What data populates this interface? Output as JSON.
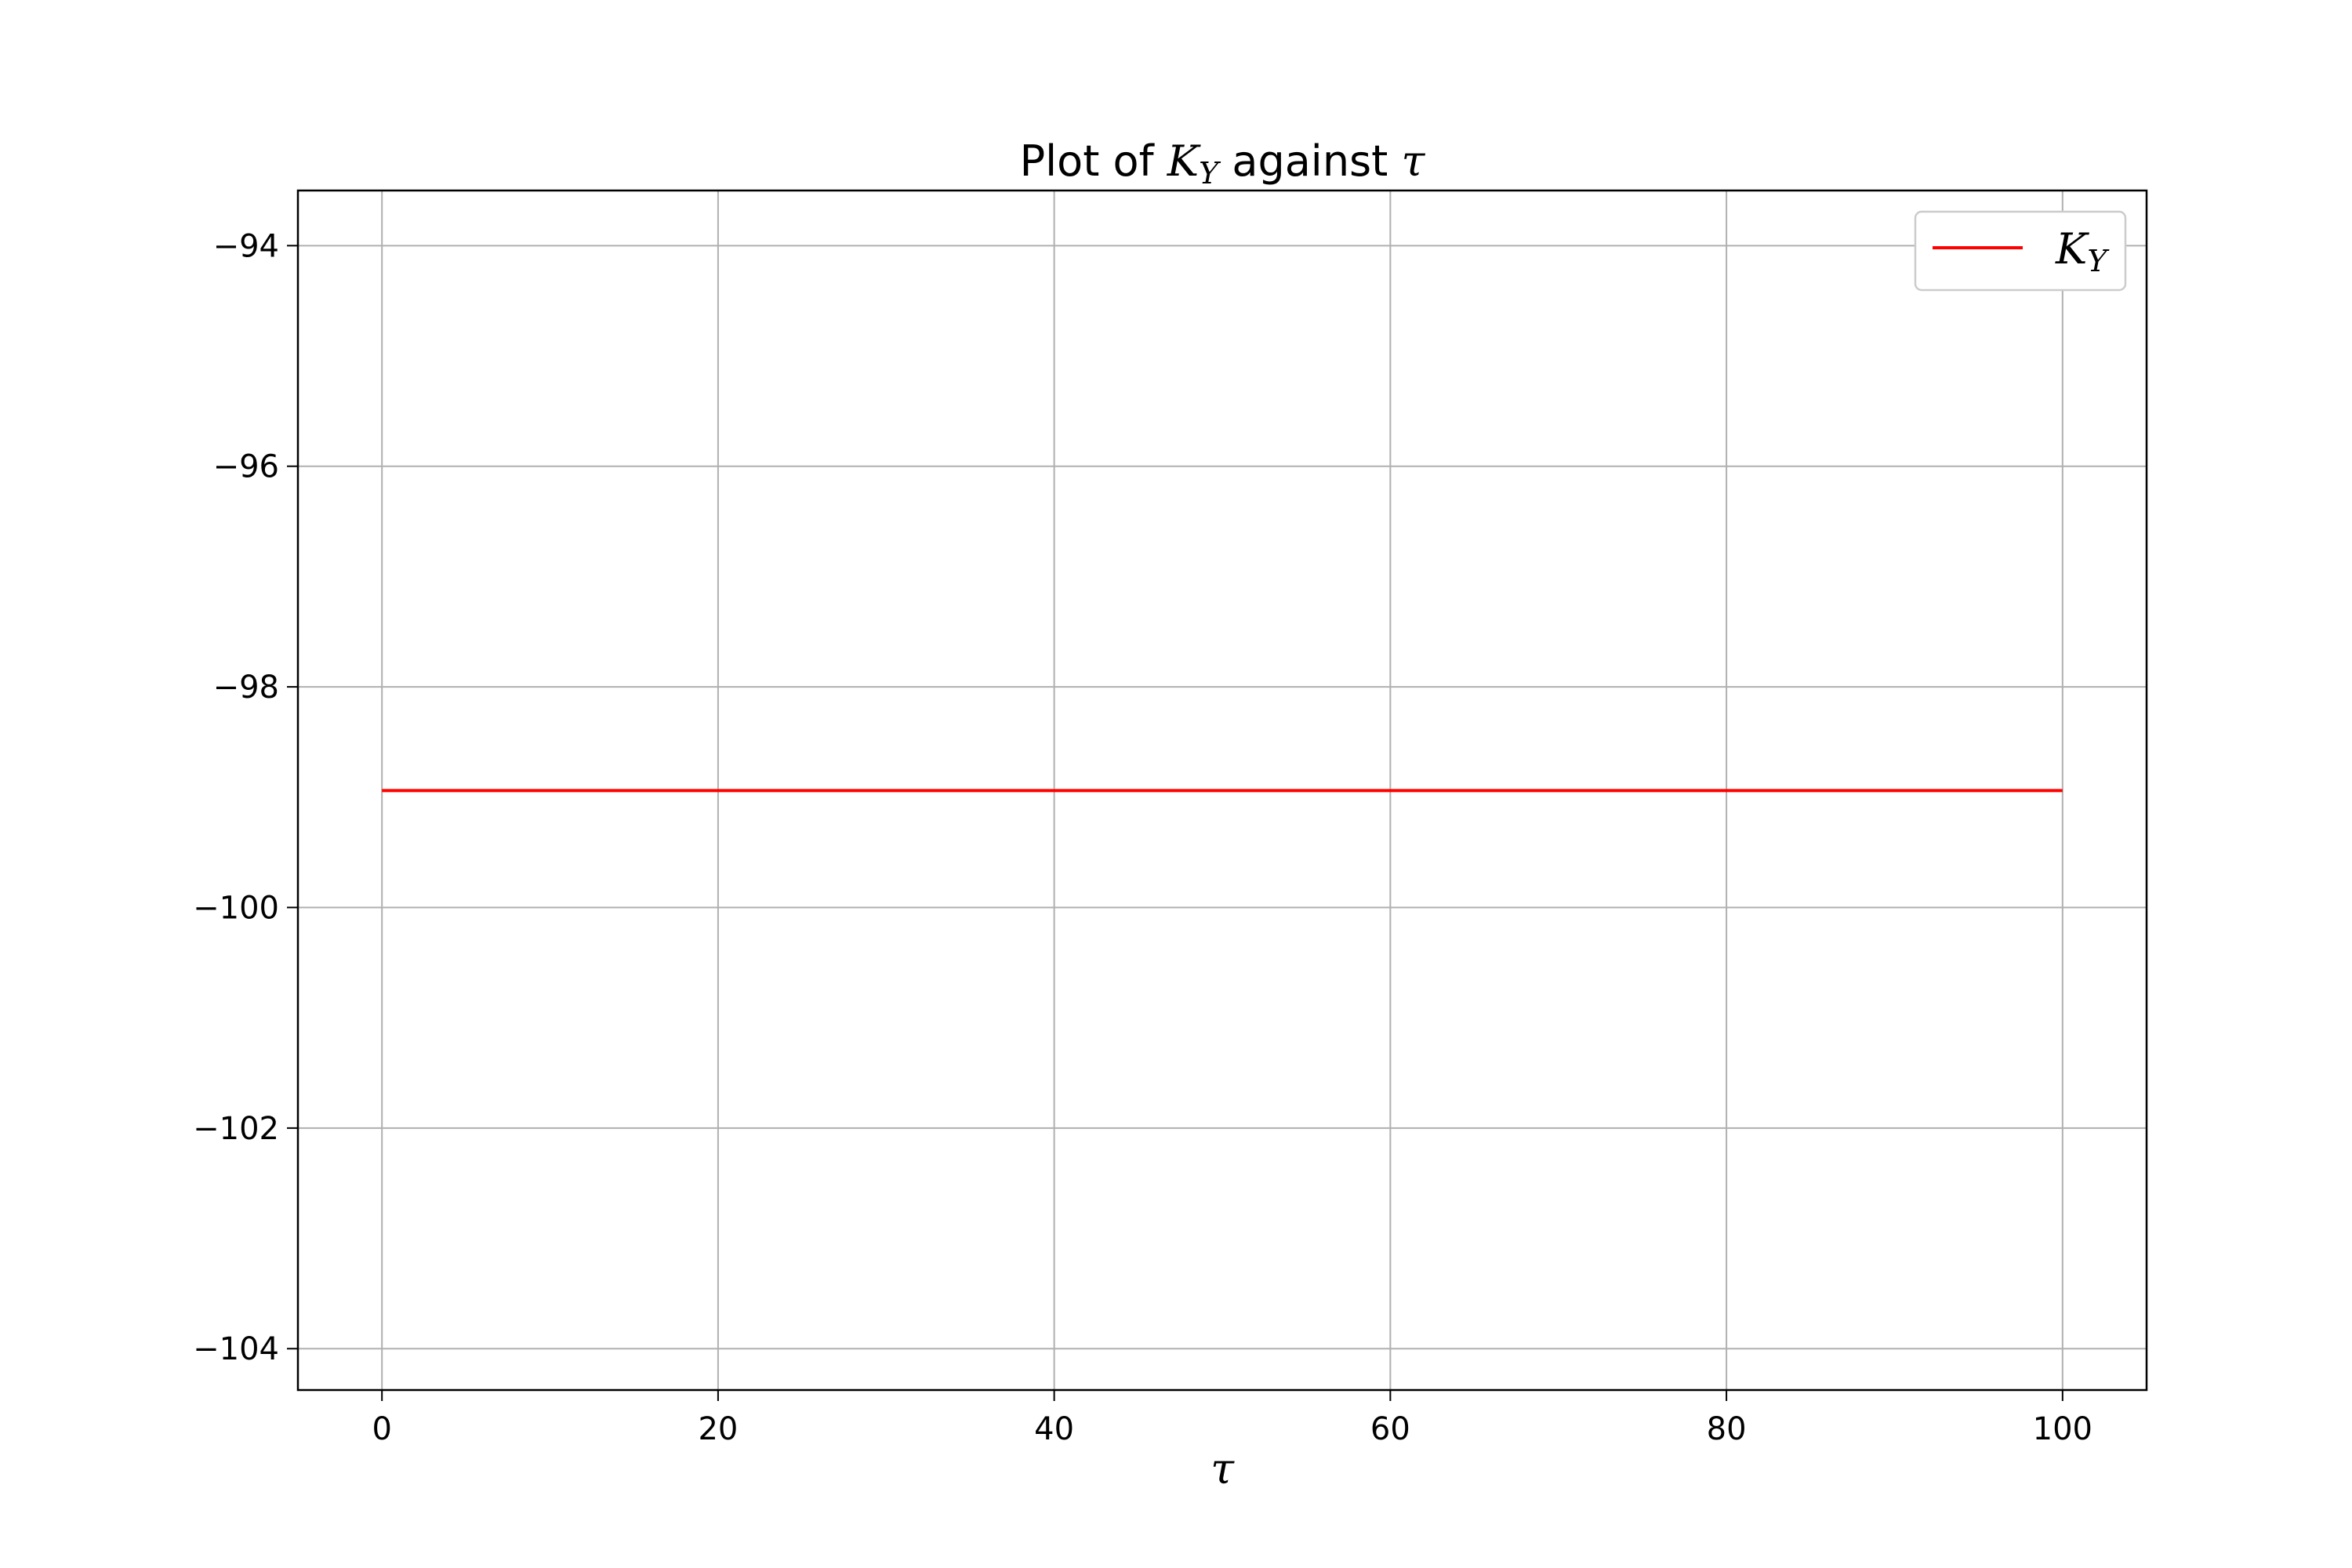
{
  "chart_data": {
    "type": "line",
    "title": {
      "prefix": "Plot of ",
      "symbol": "K",
      "subscript": "Y",
      "middle": " against ",
      "var": "τ"
    },
    "xlabel": "τ",
    "ylabel": "",
    "xlim": [
      -5,
      105
    ],
    "ylim": [
      -104.375,
      -93.5
    ],
    "xticks": [
      0,
      20,
      40,
      60,
      80,
      100
    ],
    "yticks": [
      -94,
      -96,
      -98,
      -100,
      -102,
      -104
    ],
    "xtick_labels": [
      "0",
      "20",
      "40",
      "60",
      "80",
      "100"
    ],
    "ytick_labels": [
      "−94",
      "−96",
      "−98",
      "−100",
      "−102",
      "−104"
    ],
    "grid": true,
    "legend_position": "top-right",
    "series": [
      {
        "name": {
          "symbol": "K",
          "subscript": "Y"
        },
        "color": "#ff0000",
        "x": [
          0,
          100
        ],
        "y": [
          -98.94,
          -98.94
        ]
      }
    ]
  }
}
